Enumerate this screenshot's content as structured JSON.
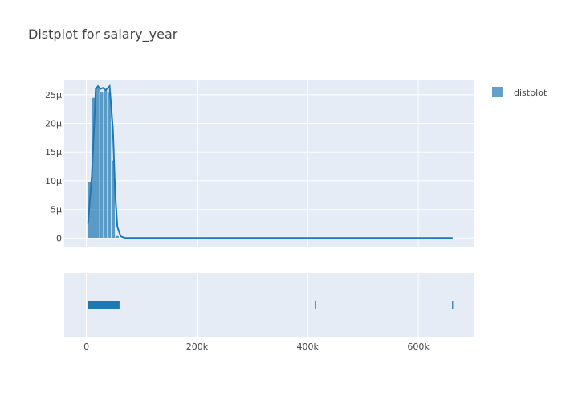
{
  "chart_data": {
    "type": "histogram",
    "title": "Distplot for salary_year",
    "xlabel": "",
    "ylabel": "",
    "legend": {
      "placement": "top-right",
      "entries": [
        "distplot"
      ]
    },
    "grid": true,
    "x_range": [
      -40000,
      700000
    ],
    "y_range": [
      -1.5e-06,
      2.75e-05
    ],
    "x_ticks": [
      {
        "value": 0,
        "label": "0"
      },
      {
        "value": 200000,
        "label": "200k"
      },
      {
        "value": 400000,
        "label": "400k"
      },
      {
        "value": 600000,
        "label": "600k"
      }
    ],
    "y_ticks": [
      {
        "value": 0,
        "label": "0"
      },
      {
        "value": 5e-06,
        "label": "5μ"
      },
      {
        "value": 1e-05,
        "label": "10μ"
      },
      {
        "value": 1.5e-05,
        "label": "15μ"
      },
      {
        "value": 2e-05,
        "label": "20μ"
      },
      {
        "value": 2.5e-05,
        "label": "25μ"
      }
    ],
    "series": [
      {
        "name": "distplot",
        "color": "#1f77b4",
        "histogram_bins": [
          {
            "x0": 3000,
            "x1": 10000,
            "y": 9.8e-06
          },
          {
            "x0": 10000,
            "x1": 17000,
            "y": 2.45e-05
          },
          {
            "x0": 17000,
            "x1": 24000,
            "y": 2.62e-05
          },
          {
            "x0": 24000,
            "x1": 31000,
            "y": 2.55e-05
          },
          {
            "x0": 31000,
            "x1": 38000,
            "y": 2.58e-05
          },
          {
            "x0": 38000,
            "x1": 45000,
            "y": 2.54e-05
          },
          {
            "x0": 45000,
            "x1": 52000,
            "y": 1.36e-05
          },
          {
            "x0": 52000,
            "x1": 59000,
            "y": 4e-07
          }
        ],
        "kde_curve": [
          [
            3000,
            2.5e-06
          ],
          [
            10000,
            1.1e-05
          ],
          [
            17000,
            2.6e-05
          ],
          [
            21000,
            2.65e-05
          ],
          [
            25000,
            2.6e-05
          ],
          [
            30000,
            2.62e-05
          ],
          [
            35000,
            2.58e-05
          ],
          [
            42000,
            2.65e-05
          ],
          [
            48000,
            1.9e-05
          ],
          [
            52000,
            8e-06
          ],
          [
            56000,
            2e-06
          ],
          [
            62000,
            3e-07
          ],
          [
            70000,
            0
          ],
          [
            662000,
            0
          ]
        ],
        "rug": {
          "range": [
            3000,
            60000
          ],
          "outliers": [
            414000,
            662000
          ]
        }
      }
    ]
  }
}
